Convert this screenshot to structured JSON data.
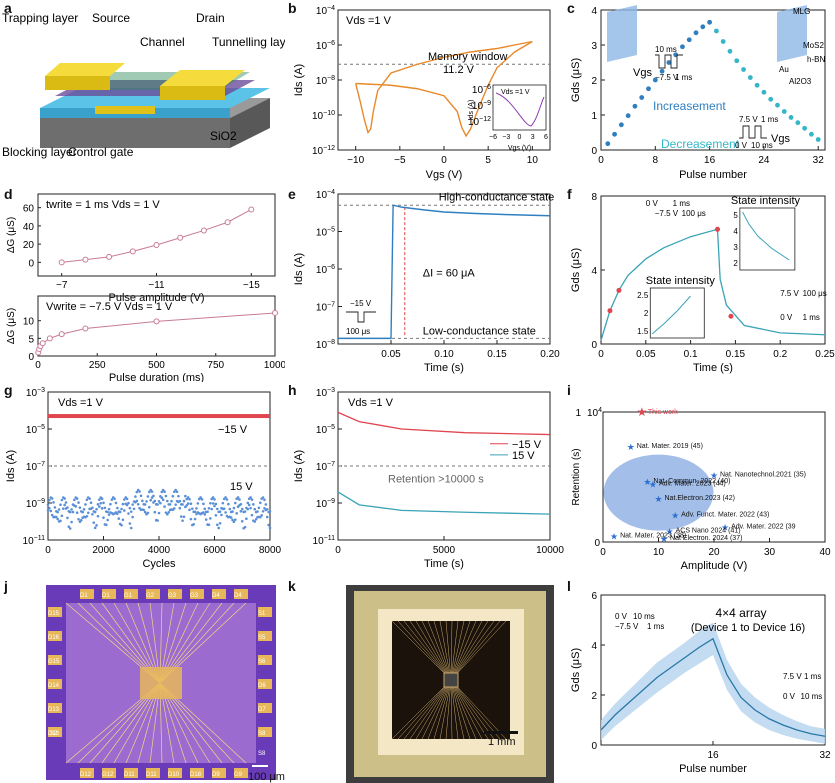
{
  "panel_letters": [
    "a",
    "b",
    "c",
    "d",
    "e",
    "f",
    "g",
    "h",
    "i",
    "j",
    "k",
    "l"
  ],
  "colors": {
    "orange": "#e8892a",
    "blue": "#2f7fc0",
    "cyan": "#35b6c6",
    "red": "#e04550",
    "pink": "#c87a98",
    "lblue": "#5b8fd6",
    "purple": "#8b3bb0",
    "teal": "#3aa3b8"
  },
  "panel_a": {
    "labels": {
      "trapping": "Trapping layer",
      "source": "Source",
      "drain": "Drain",
      "channel": "Channel",
      "tunnelling": "Tunnelling layer",
      "blocking": "Blocking layer",
      "control": "Control gate",
      "sio2": "SiO2"
    }
  },
  "chart_data": [
    {
      "id": "b",
      "type": "line",
      "title": "",
      "annotation": "Vds =1 V",
      "xlabel": "Vgs (V)",
      "ylabel": "Ids (A)",
      "xlim": [
        -12,
        12
      ],
      "ylim_log": [
        -12,
        -4
      ],
      "xticks": [
        -10,
        -5,
        0,
        5,
        10
      ],
      "yticks": [
        "10^-4",
        "10^-6",
        "10^-8",
        "10^-10",
        "10^-12"
      ],
      "text": {
        "memory_window": "Memory window",
        "window_value": "11.2 V"
      },
      "series": [
        {
          "x": [
            -10,
            -9.5,
            -9,
            -8.6,
            -8.3,
            -8,
            -7.5,
            -6,
            -3,
            0,
            3,
            6,
            9,
            10
          ],
          "log_y": [
            -8.2,
            -9.2,
            -10.3,
            -11.0,
            -10.8,
            -9.8,
            -8.6,
            -7.6,
            -7.1,
            -6.7,
            -6.4,
            -6.2,
            -5.9,
            -5.8
          ]
        },
        {
          "x": [
            10,
            9,
            8,
            6,
            5,
            4,
            3,
            2.5,
            2,
            1.5,
            0,
            -3,
            -6,
            -8,
            -10
          ],
          "log_y": [
            -5.8,
            -6.1,
            -6.4,
            -7.3,
            -8.3,
            -9.5,
            -10.8,
            -11.2,
            -10.7,
            -9.8,
            -8.9,
            -8.5,
            -8.3,
            -8.25,
            -8.2
          ]
        }
      ],
      "inset": {
        "annotation": "Vds =1 V",
        "xlabel": "Vgs (V)",
        "ylabel": "Ids (A)",
        "xticks": [
          -6,
          -3,
          0,
          3,
          6
        ],
        "yticks": [
          "10^-6",
          "10^-9",
          "10^-12"
        ]
      }
    },
    {
      "id": "c",
      "type": "scatter",
      "xlabel": "Pulse number",
      "ylabel": "Gds (μS)",
      "xlim": [
        0,
        33
      ],
      "ylim": [
        0,
        4
      ],
      "xticks": [
        0,
        8,
        16,
        24,
        32
      ],
      "yticks": [
        0,
        1,
        2,
        3,
        4
      ],
      "series": [
        {
          "name": "Increasement",
          "x": [
            1,
            2,
            3,
            4,
            5,
            6,
            7,
            8,
            9,
            10,
            11,
            12,
            13,
            14,
            15,
            16
          ],
          "values": [
            0.18,
            0.45,
            0.72,
            0.98,
            1.25,
            1.5,
            1.75,
            2.0,
            2.25,
            2.5,
            2.72,
            2.95,
            3.15,
            3.35,
            3.52,
            3.65
          ]
        },
        {
          "name": "Decreasement",
          "x": [
            17,
            18,
            19,
            20,
            21,
            22,
            23,
            24,
            25,
            26,
            27,
            28,
            29,
            30,
            31,
            32
          ],
          "values": [
            3.4,
            3.1,
            2.82,
            2.55,
            2.3,
            2.07,
            1.85,
            1.65,
            1.45,
            1.28,
            1.1,
            0.93,
            0.78,
            0.62,
            0.45,
            0.3
          ]
        }
      ],
      "text": {
        "vgs": "Vgs",
        "neg": "−7.5 V",
        "t1": "10 ms",
        "t2": "1 ms",
        "pos": "7.5 V",
        "zero": "0 V",
        "tpos1": "1 ms",
        "tpos2": "10 ms",
        "mlg": "MLG",
        "mos2": "MoS2",
        "hbn": "h-BN",
        "au": "Au",
        "al2o3": "Al2O3"
      }
    },
    {
      "id": "d_top",
      "type": "line",
      "xlabel": "Pulse amplitude (V)",
      "ylabel": "ΔG (μS)",
      "annotation": "twrite = 1 ms   Vds = 1 V",
      "xlim": [
        -6,
        -16
      ],
      "ylim": [
        -15,
        75
      ],
      "xticks": [
        -7,
        -11,
        -15
      ],
      "yticks": [
        0,
        20,
        40,
        60
      ],
      "x": [
        -7,
        -8,
        -9,
        -10,
        -11,
        -12,
        -13,
        -14,
        -15
      ],
      "values": [
        0,
        3,
        6,
        12,
        19,
        27,
        35,
        44,
        58
      ]
    },
    {
      "id": "d_bottom",
      "type": "line",
      "xlabel": "Pulse duration (ms)",
      "ylabel": "ΔG (μS)",
      "annotation": "Vwrite = −7.5 V   Vds = 1 V",
      "xlim": [
        0,
        1000
      ],
      "ylim": [
        0,
        17
      ],
      "xticks": [
        0,
        250,
        500,
        750,
        1000
      ],
      "yticks": [
        0,
        5,
        10
      ],
      "x": [
        1,
        5,
        10,
        20,
        50,
        100,
        200,
        500,
        1000
      ],
      "values": [
        1.0,
        2.0,
        2.8,
        3.6,
        5.0,
        6.2,
        7.8,
        9.8,
        12.2
      ]
    },
    {
      "id": "e",
      "type": "line",
      "xlabel": "Time (s)",
      "ylabel": "Ids (A)",
      "xlim": [
        0,
        0.2
      ],
      "ylim_log": [
        -8,
        -4
      ],
      "xticks": [
        0.05,
        0.1,
        0.15,
        0.2
      ],
      "yticks": [
        "10^-4",
        "10^-5",
        "10^-6",
        "10^-7",
        "10^-8"
      ],
      "text": {
        "high": "High-conductance state",
        "low": "Low-conductance state",
        "delta": "ΔI = 60 μA",
        "pulse_v": "−15 V",
        "pulse_t": "100 μs"
      },
      "x": [
        0,
        0.05,
        0.052,
        0.06,
        0.08,
        0.1,
        0.13,
        0.16,
        0.2
      ],
      "log_y": [
        -7.85,
        -7.85,
        -4.3,
        -4.35,
        -4.42,
        -4.48,
        -4.52,
        -4.55,
        -4.58
      ]
    },
    {
      "id": "f",
      "type": "line",
      "xlabel": "Time (s)",
      "ylabel": "Gds (μS)",
      "xlim": [
        0,
        0.25
      ],
      "ylim": [
        0,
        8
      ],
      "xticks": [
        0,
        0.05,
        0.1,
        0.15,
        0.2,
        0.25
      ],
      "yticks": [
        0,
        4,
        8
      ],
      "text": {
        "state_intensity": "State intensity",
        "neg": "−7.5 V",
        "t1": "100 μs",
        "t0": "0 V",
        "t2": "1 ms",
        "pos": "7.5 V",
        "tp1": "100 μs",
        "tp0": "0 V",
        "tp2": "1 ms"
      },
      "x": [
        0,
        0.005,
        0.01,
        0.02,
        0.03,
        0.05,
        0.07,
        0.1,
        0.13,
        0.133,
        0.14,
        0.16,
        0.2,
        0.25
      ],
      "values": [
        0.2,
        1.0,
        1.8,
        2.9,
        3.7,
        4.6,
        5.2,
        5.8,
        6.2,
        3.5,
        2.1,
        1.0,
        0.6,
        0.5
      ],
      "inset_right": {
        "yticks": [
          2,
          3,
          4,
          5
        ]
      },
      "inset_left": {
        "yticks": [
          1.5,
          2,
          2.5
        ]
      }
    },
    {
      "id": "g",
      "type": "scatter",
      "xlabel": "Cycles",
      "ylabel": "Ids (A)",
      "annotation": "Vds =1 V",
      "xlim": [
        0,
        8000
      ],
      "ylim_log": [
        -11,
        -3
      ],
      "xticks": [
        0,
        2000,
        4000,
        6000,
        8000
      ],
      "yticks": [
        "10^-3",
        "10^-5",
        "10^-7",
        "10^-9",
        "10^-11"
      ],
      "series": [
        {
          "name": "−15 V",
          "log_level": -4.3
        },
        {
          "name": "15 V",
          "log_level": -9.1
        }
      ]
    },
    {
      "id": "h",
      "type": "line",
      "xlabel": "Time (s)",
      "ylabel": "Ids (A)",
      "annotation": "Vds =1 V",
      "xlim": [
        0,
        10000
      ],
      "ylim_log": [
        -11,
        -3
      ],
      "xticks": [
        0,
        5000,
        10000
      ],
      "yticks": [
        "10^-3",
        "10^-5",
        "10^-7",
        "10^-9",
        "10^-11"
      ],
      "text": {
        "retention": "Retention >10000 s"
      },
      "series": [
        {
          "name": "−15 V",
          "x": [
            0,
            1000,
            3000,
            6000,
            10000
          ],
          "log_y": [
            -4.1,
            -4.6,
            -5.0,
            -5.2,
            -5.3
          ]
        },
        {
          "name": "15 V",
          "x": [
            0,
            1000,
            3000,
            6000,
            10000
          ],
          "log_y": [
            -8.4,
            -9.1,
            -9.4,
            -9.5,
            -9.6
          ]
        }
      ]
    },
    {
      "id": "i",
      "type": "scatter",
      "xlabel": "Amplitude (V)",
      "ylabel": "Retention (s)",
      "xlim": [
        0,
        40
      ],
      "ylim": [
        0,
        10000
      ],
      "xticks": [
        0,
        10,
        20,
        30,
        40
      ],
      "yticks": [
        "0",
        "×10^4"
      ],
      "points": [
        {
          "label": "This work",
          "x": 7,
          "y": 10000,
          "highlight": true
        },
        {
          "label": "Nat. Mater. 2019 (45)",
          "x": 5,
          "y": 7400
        },
        {
          "label": "Nat. Nanotechnol.2021 (35)",
          "x": 20,
          "y": 5200
        },
        {
          "label": "Nat. Commun. 2022 (40)",
          "x": 8,
          "y": 4700
        },
        {
          "label": "Adv. Mater. 2023 (44)",
          "x": 9,
          "y": 4500
        },
        {
          "label": "Nat.Electron.2023 (42)",
          "x": 10,
          "y": 3400
        },
        {
          "label": "Adv. Funct. Mater. 2022 (43)",
          "x": 13,
          "y": 2100
        },
        {
          "label": "Adv. Mater. 2022 (39",
          "x": 22,
          "y": 1200
        },
        {
          "label": "ACS Nano 2024 (41)",
          "x": 12,
          "y": 900
        },
        {
          "label": "Nat. Mater. 2023 (38)",
          "x": 2,
          "y": 500
        },
        {
          "label": "Nat Electron. 2024 (37)",
          "x": 11,
          "y": 300
        }
      ]
    },
    {
      "id": "l",
      "type": "area",
      "xlabel": "Pulse number",
      "ylabel": "Gds (μS)",
      "title": "4×4 array",
      "subtitle": "(Device 1 to Device 16)",
      "xlim": [
        0,
        32
      ],
      "ylim": [
        0,
        6
      ],
      "xticks": [
        16,
        32
      ],
      "yticks": [
        0,
        2,
        4,
        6
      ],
      "x": [
        0,
        2,
        4,
        6,
        8,
        10,
        12,
        14,
        16,
        18,
        20,
        22,
        24,
        26,
        28,
        30,
        32
      ],
      "values": [
        0.6,
        1.2,
        1.7,
        2.2,
        2.7,
        3.1,
        3.5,
        3.9,
        4.25,
        2.8,
        1.9,
        1.4,
        1.05,
        0.8,
        0.6,
        0.45,
        0.35
      ],
      "spread": [
        0.4,
        0.45,
        0.5,
        0.55,
        0.6,
        0.6,
        0.6,
        0.65,
        0.65,
        0.6,
        0.55,
        0.5,
        0.45,
        0.4,
        0.35,
        0.3,
        0.3
      ],
      "text": {
        "neg": "−7.5 V",
        "t1": "10 ms",
        "t2": "1 ms",
        "t0": "0 V",
        "pos": "7.5 V",
        "tp1": "1 ms",
        "tp0": "0 V",
        "tp2": "10 ms"
      }
    }
  ],
  "panel_j": {
    "scale": "100 μm",
    "top_pads": [
      "D1",
      "D1",
      "G1",
      "G2",
      "G3",
      "G3",
      "D4",
      "D4"
    ],
    "left_pads": [
      "D15",
      "D16",
      "G15",
      "D14",
      "D13",
      "D13"
    ],
    "right_pads": [
      "S1",
      "S5",
      "S6",
      "D6",
      "D7",
      "S8"
    ],
    "bottom_pads": [
      "D12",
      "G12",
      "D11",
      "D11",
      "D10",
      "D18",
      "D9",
      "G9"
    ],
    "corner_bl": "S2",
    "corner_br": "S8"
  },
  "panel_k": {
    "scale": "1 mm"
  }
}
